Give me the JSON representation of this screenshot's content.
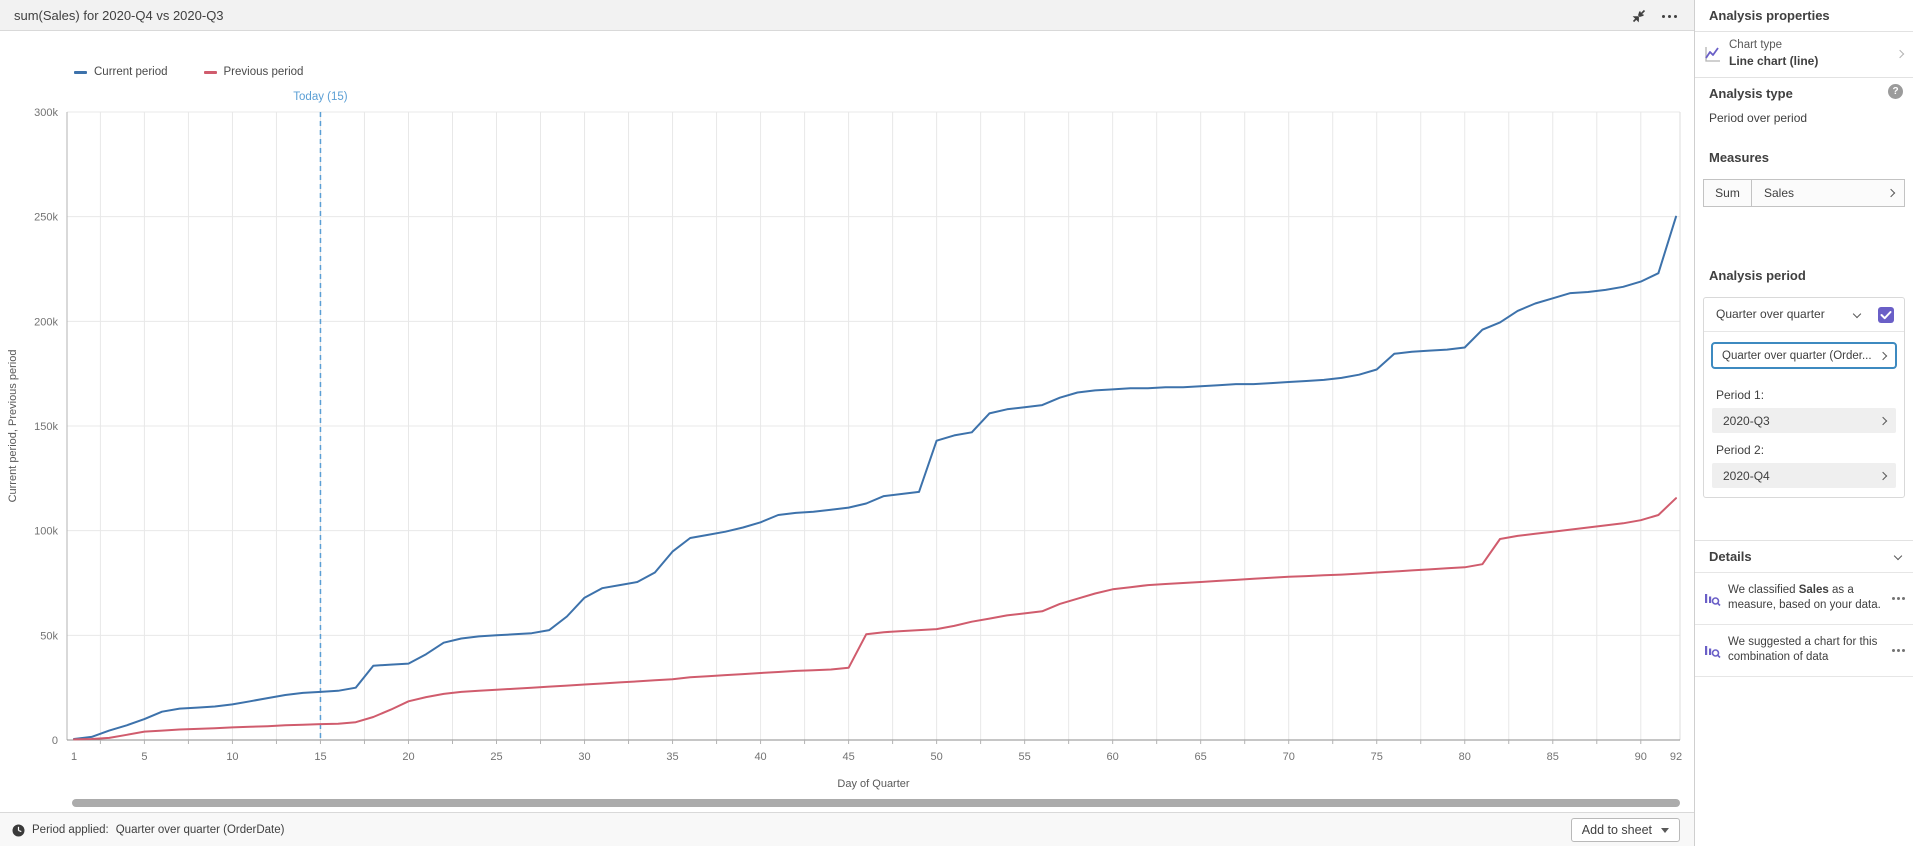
{
  "chart_header": {
    "title": "sum(Sales) for 2020-Q4 vs 2020-Q3"
  },
  "footer": {
    "status_prefix": "Period applied:",
    "status_value": "Quarter over quarter (OrderDate)",
    "add_button_label": "Add to sheet"
  },
  "panel": {
    "title": "Analysis properties",
    "chart_type": {
      "label": "Chart type",
      "value": "Line chart (line)"
    },
    "analysis_type": {
      "label": "Analysis type",
      "value": "Period over period",
      "help_glyph": "?"
    },
    "measures": {
      "label": "Measures",
      "aggregation": "Sum",
      "field": "Sales"
    },
    "analysis_period": {
      "label": "Analysis period",
      "dropdown_value": "Quarter over quarter",
      "calendar_button_value": "Quarter over quarter (Order...",
      "period1_label": "Period 1:",
      "period1_value": "2020-Q3",
      "period2_label": "Period 2:",
      "period2_value": "2020-Q4"
    },
    "details": {
      "label": "Details",
      "item1": {
        "prefix": "We classified ",
        "highlight": "Sales",
        "suffix": " as a measure, based on your data."
      },
      "item2": {
        "text": "We suggested a chart for this combination of data"
      }
    }
  },
  "chart_data": {
    "type": "line",
    "title": "sum(Sales) for 2020-Q4 vs 2020-Q3",
    "xlabel": "Day of Quarter",
    "ylabel": "Current period, Previous period",
    "xlim": [
      1,
      92
    ],
    "ylim": [
      0,
      300000
    ],
    "xticks": [
      1,
      5,
      10,
      15,
      20,
      25,
      30,
      35,
      40,
      45,
      50,
      55,
      60,
      65,
      70,
      75,
      80,
      85,
      90,
      92
    ],
    "yticks": [
      0,
      50000,
      100000,
      150000,
      200000,
      250000,
      300000
    ],
    "ytick_labels": [
      "0",
      "50k",
      "100k",
      "150k",
      "200k",
      "250k",
      "300k"
    ],
    "grid": true,
    "minor_x_grid_step": 2.5,
    "legend_position": "top-left",
    "annotations": [
      {
        "type": "vline",
        "x": 15,
        "label": "Today (15)",
        "color": "#5b9fd5",
        "style": "dashed"
      }
    ],
    "series": [
      {
        "name": "Current period",
        "color": "#3d72ab",
        "points": [
          [
            1,
            500
          ],
          [
            2,
            1500
          ],
          [
            3,
            4500
          ],
          [
            4,
            7000
          ],
          [
            5,
            10000
          ],
          [
            6,
            13500
          ],
          [
            7,
            15000
          ],
          [
            8,
            15500
          ],
          [
            9,
            16000
          ],
          [
            10,
            17000
          ],
          [
            11,
            18500
          ],
          [
            12,
            20000
          ],
          [
            13,
            21500
          ],
          [
            14,
            22500
          ],
          [
            15,
            23000
          ],
          [
            16,
            23500
          ],
          [
            17,
            25000
          ],
          [
            18,
            35500
          ],
          [
            19,
            36000
          ],
          [
            20,
            36500
          ],
          [
            21,
            41000
          ],
          [
            22,
            46500
          ],
          [
            23,
            48500
          ],
          [
            24,
            49500
          ],
          [
            25,
            50000
          ],
          [
            26,
            50500
          ],
          [
            27,
            51000
          ],
          [
            28,
            52500
          ],
          [
            29,
            59000
          ],
          [
            30,
            68000
          ],
          [
            31,
            72500
          ],
          [
            32,
            74000
          ],
          [
            33,
            75500
          ],
          [
            34,
            80000
          ],
          [
            35,
            90000
          ],
          [
            36,
            96500
          ],
          [
            37,
            98000
          ],
          [
            38,
            99500
          ],
          [
            39,
            101500
          ],
          [
            40,
            104000
          ],
          [
            41,
            107500
          ],
          [
            42,
            108500
          ],
          [
            43,
            109000
          ],
          [
            44,
            110000
          ],
          [
            45,
            111000
          ],
          [
            46,
            113000
          ],
          [
            47,
            116500
          ],
          [
            48,
            117500
          ],
          [
            49,
            118500
          ],
          [
            50,
            143000
          ],
          [
            51,
            145500
          ],
          [
            52,
            147000
          ],
          [
            53,
            156000
          ],
          [
            54,
            158000
          ],
          [
            55,
            159000
          ],
          [
            56,
            160000
          ],
          [
            57,
            163500
          ],
          [
            58,
            166000
          ],
          [
            59,
            167000
          ],
          [
            60,
            167500
          ],
          [
            61,
            168000
          ],
          [
            62,
            168000
          ],
          [
            63,
            168500
          ],
          [
            64,
            168500
          ],
          [
            65,
            169000
          ],
          [
            66,
            169500
          ],
          [
            67,
            170000
          ],
          [
            68,
            170000
          ],
          [
            69,
            170500
          ],
          [
            70,
            171000
          ],
          [
            71,
            171500
          ],
          [
            72,
            172000
          ],
          [
            73,
            173000
          ],
          [
            74,
            174500
          ],
          [
            75,
            177000
          ],
          [
            76,
            184500
          ],
          [
            77,
            185500
          ],
          [
            78,
            186000
          ],
          [
            79,
            186500
          ],
          [
            80,
            187500
          ],
          [
            81,
            196000
          ],
          [
            82,
            199500
          ],
          [
            83,
            205000
          ],
          [
            84,
            208500
          ],
          [
            85,
            211000
          ],
          [
            86,
            213500
          ],
          [
            87,
            214000
          ],
          [
            88,
            215000
          ],
          [
            89,
            216500
          ],
          [
            90,
            219000
          ],
          [
            91,
            223000
          ],
          [
            92,
            250000
          ]
        ]
      },
      {
        "name": "Previous period",
        "color": "#d05c6d",
        "points": [
          [
            1,
            300
          ],
          [
            2,
            500
          ],
          [
            3,
            1000
          ],
          [
            4,
            2500
          ],
          [
            5,
            4000
          ],
          [
            6,
            4500
          ],
          [
            7,
            5000
          ],
          [
            8,
            5300
          ],
          [
            9,
            5600
          ],
          [
            10,
            6000
          ],
          [
            11,
            6300
          ],
          [
            12,
            6600
          ],
          [
            13,
            7000
          ],
          [
            14,
            7300
          ],
          [
            15,
            7600
          ],
          [
            16,
            7800
          ],
          [
            17,
            8500
          ],
          [
            18,
            11000
          ],
          [
            19,
            14500
          ],
          [
            20,
            18500
          ],
          [
            21,
            20500
          ],
          [
            22,
            22000
          ],
          [
            23,
            23000
          ],
          [
            24,
            23500
          ],
          [
            25,
            24000
          ],
          [
            26,
            24500
          ],
          [
            27,
            25000
          ],
          [
            28,
            25500
          ],
          [
            29,
            26000
          ],
          [
            30,
            26500
          ],
          [
            31,
            27000
          ],
          [
            32,
            27500
          ],
          [
            33,
            28000
          ],
          [
            34,
            28500
          ],
          [
            35,
            29000
          ],
          [
            36,
            30000
          ],
          [
            37,
            30500
          ],
          [
            38,
            31000
          ],
          [
            39,
            31500
          ],
          [
            40,
            32000
          ],
          [
            41,
            32500
          ],
          [
            42,
            33000
          ],
          [
            43,
            33300
          ],
          [
            44,
            33700
          ],
          [
            45,
            34500
          ],
          [
            46,
            50500
          ],
          [
            47,
            51500
          ],
          [
            48,
            52000
          ],
          [
            49,
            52500
          ],
          [
            50,
            53000
          ],
          [
            51,
            54500
          ],
          [
            52,
            56500
          ],
          [
            53,
            58000
          ],
          [
            54,
            59500
          ],
          [
            55,
            60500
          ],
          [
            56,
            61500
          ],
          [
            57,
            65000
          ],
          [
            58,
            67500
          ],
          [
            59,
            70000
          ],
          [
            60,
            72000
          ],
          [
            61,
            73000
          ],
          [
            62,
            74000
          ],
          [
            63,
            74500
          ],
          [
            64,
            75000
          ],
          [
            65,
            75500
          ],
          [
            66,
            76000
          ],
          [
            67,
            76500
          ],
          [
            68,
            77000
          ],
          [
            69,
            77500
          ],
          [
            70,
            78000
          ],
          [
            71,
            78300
          ],
          [
            72,
            78700
          ],
          [
            73,
            79000
          ],
          [
            74,
            79500
          ],
          [
            75,
            80000
          ],
          [
            76,
            80500
          ],
          [
            77,
            81000
          ],
          [
            78,
            81500
          ],
          [
            79,
            82000
          ],
          [
            80,
            82500
          ],
          [
            81,
            84000
          ],
          [
            82,
            96000
          ],
          [
            83,
            97500
          ],
          [
            84,
            98500
          ],
          [
            85,
            99500
          ],
          [
            86,
            100500
          ],
          [
            87,
            101500
          ],
          [
            88,
            102500
          ],
          [
            89,
            103500
          ],
          [
            90,
            105000
          ],
          [
            91,
            107500
          ],
          [
            92,
            115500
          ]
        ]
      }
    ]
  }
}
